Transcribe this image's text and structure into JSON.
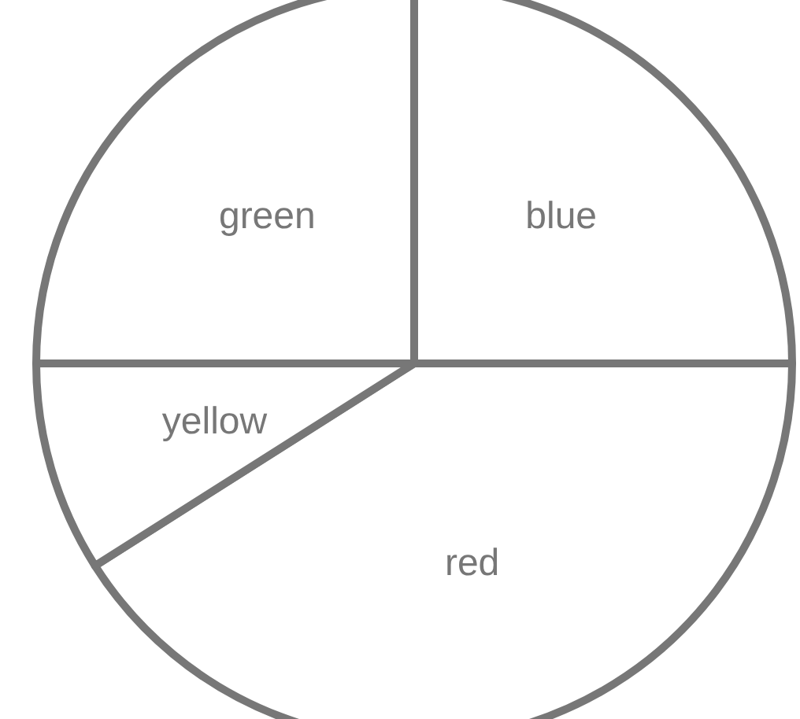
{
  "chart_data": {
    "type": "pie",
    "categories": [
      "blue",
      "red",
      "yellow",
      "green"
    ],
    "values": [
      25,
      41,
      9,
      25
    ],
    "colors": [
      "#ffffff",
      "#ffffff",
      "#ffffff",
      "#ffffff"
    ],
    "data_labels": false
  }
}
